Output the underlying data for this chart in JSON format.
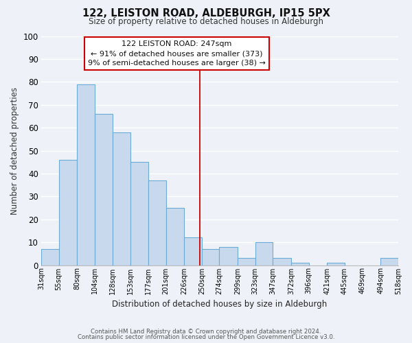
{
  "title": "122, LEISTON ROAD, ALDEBURGH, IP15 5PX",
  "subtitle": "Size of property relative to detached houses in Aldeburgh",
  "xlabel": "Distribution of detached houses by size in Aldeburgh",
  "ylabel": "Number of detached properties",
  "bar_left_edges": [
    31,
    55,
    80,
    104,
    128,
    153,
    177,
    201,
    226,
    250,
    274,
    299,
    323,
    347,
    372,
    396,
    421,
    445,
    469,
    494
  ],
  "bar_widths": [
    24,
    25,
    24,
    24,
    25,
    24,
    24,
    25,
    24,
    24,
    25,
    24,
    24,
    25,
    24,
    25,
    24,
    24,
    25,
    24
  ],
  "bar_heights": [
    7,
    46,
    79,
    66,
    58,
    45,
    37,
    25,
    12,
    7,
    8,
    3,
    10,
    3,
    1,
    0,
    1,
    0,
    0,
    3
  ],
  "tick_labels": [
    "31sqm",
    "55sqm",
    "80sqm",
    "104sqm",
    "128sqm",
    "153sqm",
    "177sqm",
    "201sqm",
    "226sqm",
    "250sqm",
    "274sqm",
    "299sqm",
    "323sqm",
    "347sqm",
    "372sqm",
    "396sqm",
    "421sqm",
    "445sqm",
    "469sqm",
    "494sqm",
    "518sqm"
  ],
  "tick_positions": [
    31,
    55,
    80,
    104,
    128,
    153,
    177,
    201,
    226,
    250,
    274,
    299,
    323,
    347,
    372,
    396,
    421,
    445,
    469,
    494,
    518
  ],
  "bar_color": "#c8d9ee",
  "bar_edge_color": "#6aaad4",
  "vline_x": 247,
  "vline_color": "#cc0000",
  "ylim": [
    0,
    100
  ],
  "yticks": [
    0,
    10,
    20,
    30,
    40,
    50,
    60,
    70,
    80,
    90,
    100
  ],
  "annotation_title": "122 LEISTON ROAD: 247sqm",
  "annotation_line1": "← 91% of detached houses are smaller (373)",
  "annotation_line2": "9% of semi-detached houses are larger (38) →",
  "annotation_box_facecolor": "#ffffff",
  "annotation_box_edgecolor": "#cc0000",
  "background_color": "#eef2f8",
  "grid_color": "#ffffff",
  "footer_line1": "Contains HM Land Registry data © Crown copyright and database right 2024.",
  "footer_line2": "Contains public sector information licensed under the Open Government Licence v3.0."
}
